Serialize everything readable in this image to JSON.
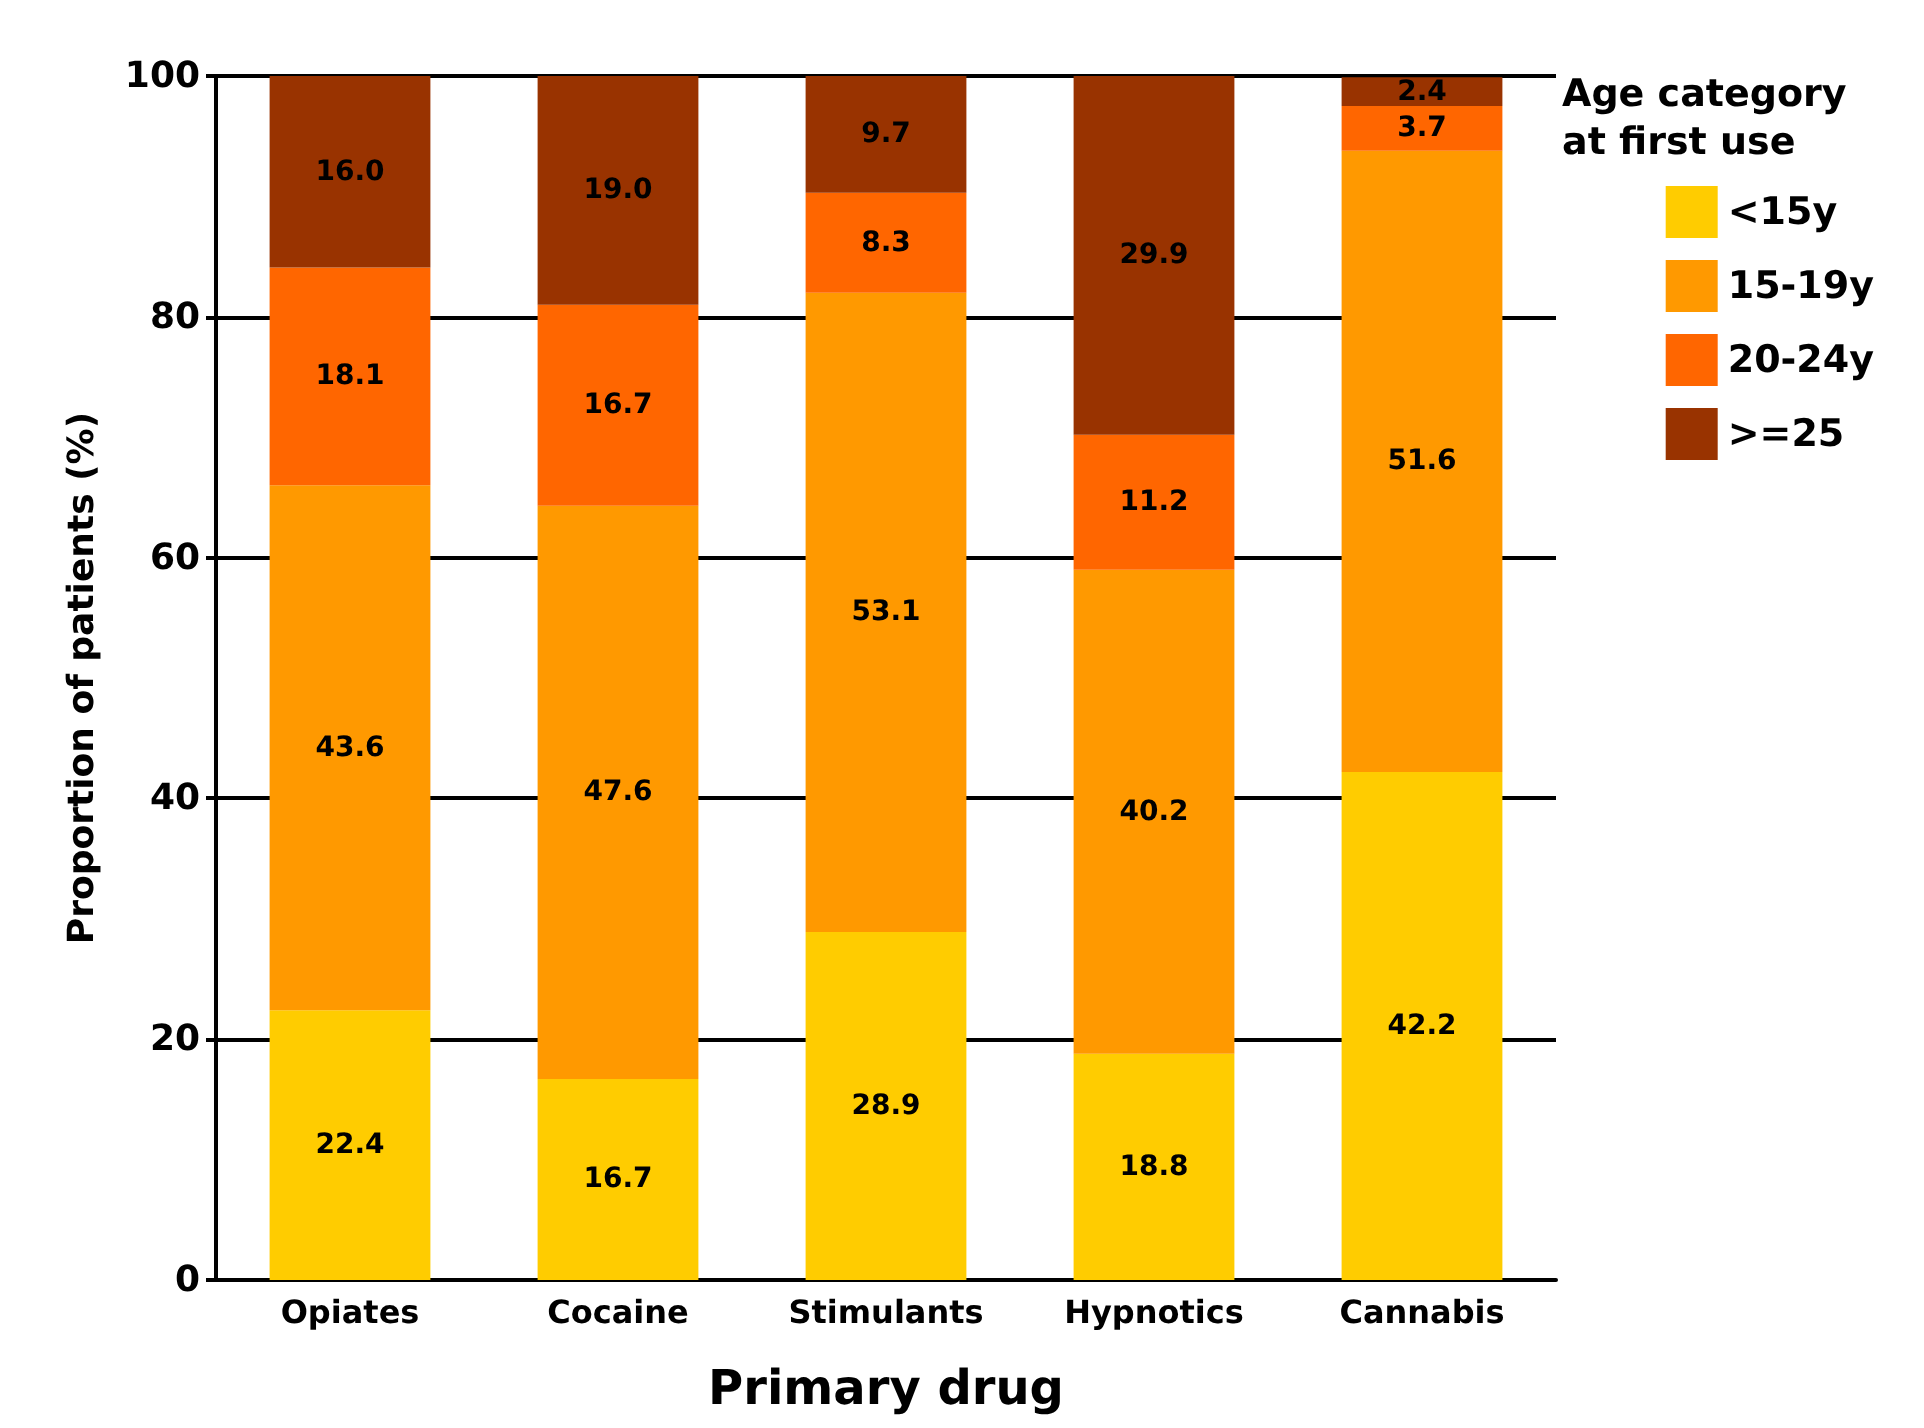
{
  "chart_data": {
    "type": "bar",
    "stacked": true,
    "xlabel": "Primary drug",
    "ylabel": "Proportion of patients (%)",
    "legend_title": "Age category at first use",
    "legend": "top right",
    "grid": "y",
    "categories": [
      "Opiates",
      "Cocaine",
      "Stimulants",
      "Hypnotics",
      "Cannabis"
    ],
    "ylim": [
      0,
      100
    ],
    "yticks": [
      0,
      20,
      40,
      60,
      80,
      100
    ],
    "series": [
      {
        "name": "<15y",
        "color": "#ffcc00",
        "values": [
          22.4,
          16.7,
          28.9,
          18.8,
          42.2
        ],
        "value_labels": [
          "22.4",
          "16.7",
          "28.9",
          "18.8",
          "42.2"
        ]
      },
      {
        "name": "15-19y",
        "color": "#ff9900",
        "values": [
          43.6,
          47.6,
          53.1,
          40.2,
          51.6
        ],
        "value_labels": [
          "43.6",
          "47.6",
          "53.1",
          "40.2",
          "51.6"
        ]
      },
      {
        "name": "20-24y",
        "color": "#ff6600",
        "values": [
          18.1,
          16.7,
          8.3,
          11.2,
          3.7
        ],
        "value_labels": [
          "18.1",
          "16.7",
          "8.3",
          "11.2",
          "3.7"
        ]
      },
      {
        "name": ">=25",
        "color": "#993300",
        "values": [
          16,
          19,
          9.7,
          29.9,
          2.4
        ],
        "value_labels": [
          "16.0",
          "19.0",
          "9.7",
          "29.9",
          "2.4"
        ]
      }
    ]
  }
}
